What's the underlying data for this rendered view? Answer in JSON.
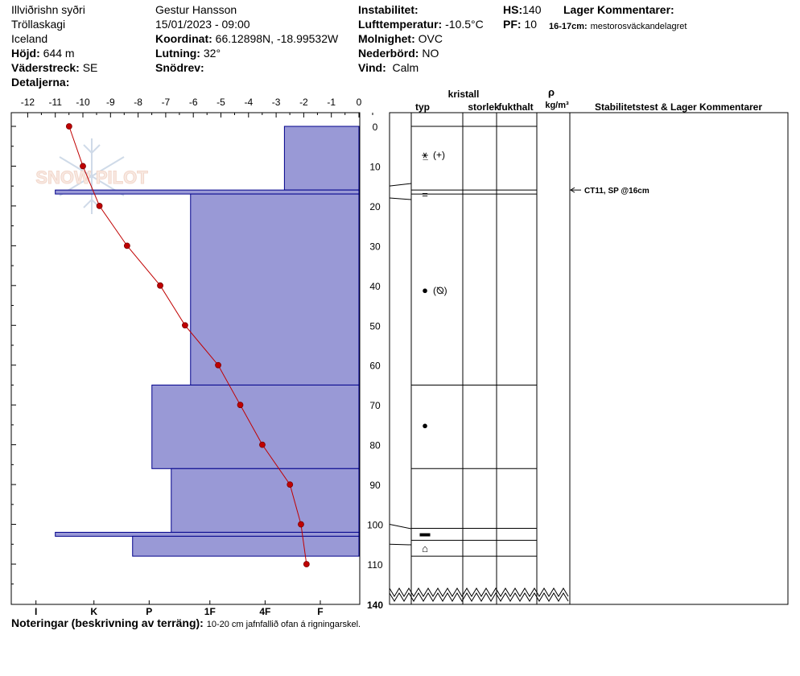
{
  "header": {
    "location": "Illviðrishn syðri",
    "region": "Tröllaskagi",
    "country": "Iceland",
    "elevation_label": "Höjd:",
    "elevation_value": "644 m",
    "aspect_label": "Väderstreck:",
    "aspect_value": "SE",
    "details_label": "Detaljerna:",
    "observer": "Gestur Hansson",
    "datetime": "15/01/2023 - 09:00",
    "coord_label": "Koordinat:",
    "coord_value": "66.12898N, -18.99532W",
    "slope_label": "Lutning:",
    "slope_value": "32°",
    "drift_label": "Snödrev:",
    "instability_label": "Instabilitet:",
    "airtemp_label": "Lufttemperatur:",
    "airtemp_value": "-10.5°C",
    "sky_label": "Molnighet:",
    "sky_value": "OVC",
    "precip_label": "Nederbörd:",
    "precip_value": "NO",
    "wind_label": "Vind:",
    "wind_value": "Calm",
    "hs_label": "HS:",
    "hs_value": "140",
    "pf_label": "PF:",
    "pf_value": "10",
    "layer_comments_label": "Lager Kommentarer:",
    "layer_comment_range": "16-17cm:",
    "layer_comment_text": "mestorosväckandelagret"
  },
  "notes": {
    "label": "Noteringar (beskrivning av terräng):",
    "text": "10-20 cm jafnfallið ofan á rigningarskel."
  },
  "watermark": "SNOW PILOT",
  "chart_data": {
    "type": "snow-profile",
    "temperature_axis": {
      "ticks": [
        -12,
        -11,
        -10,
        -9,
        -8,
        -7,
        -6,
        -5,
        -4,
        -3,
        -2,
        -1,
        0
      ],
      "range": [
        -12.5,
        0
      ]
    },
    "depth_axis": {
      "ticks": [
        0,
        10,
        20,
        30,
        40,
        50,
        60,
        70,
        80,
        90,
        100,
        110,
        140
      ],
      "range": [
        0,
        140
      ]
    },
    "hardness_axis": {
      "ticks": [
        {
          "label": "I",
          "temp": -11.7
        },
        {
          "label": "K",
          "temp": -9.6
        },
        {
          "label": "P",
          "temp": -7.6
        },
        {
          "label": "1F",
          "temp": -5.4
        },
        {
          "label": "4F",
          "temp": -3.4
        },
        {
          "label": "F",
          "temp": -1.4
        }
      ]
    },
    "temperature_profile": [
      {
        "depth": 0,
        "temp": -10.5
      },
      {
        "depth": 10,
        "temp": -10.0
      },
      {
        "depth": 20,
        "temp": -9.4
      },
      {
        "depth": 30,
        "temp": -8.4
      },
      {
        "depth": 40,
        "temp": -7.2
      },
      {
        "depth": 50,
        "temp": -6.3
      },
      {
        "depth": 60,
        "temp": -5.1
      },
      {
        "depth": 70,
        "temp": -4.3
      },
      {
        "depth": 80,
        "temp": -3.5
      },
      {
        "depth": 90,
        "temp": -2.5
      },
      {
        "depth": 100,
        "temp": -2.1
      },
      {
        "depth": 110,
        "temp": -1.9
      }
    ],
    "hardness_layers": [
      {
        "top": 0,
        "bottom": 16,
        "temp": -2.7
      },
      {
        "top": 16,
        "bottom": 17,
        "temp": -11.0
      },
      {
        "top": 17,
        "bottom": 65,
        "temp": -6.1
      },
      {
        "top": 65,
        "bottom": 86,
        "temp": -7.5
      },
      {
        "top": 86,
        "bottom": 102,
        "temp": -6.8
      },
      {
        "top": 102,
        "bottom": 103,
        "temp": -11.0
      },
      {
        "top": 103,
        "bottom": 108,
        "temp": -8.2
      }
    ],
    "layer_boundaries": [
      0,
      16,
      17,
      65,
      86,
      101,
      104,
      108
    ],
    "crystal_columns": {
      "kristall": "kristall",
      "typ": "typ",
      "storlek": "storlek",
      "fukthalt": "fukthalt",
      "rho": "ρ",
      "density_unit": "kg/m³",
      "stability": "Stabilitetstest & Lager Kommentarer"
    },
    "crystal_symbols": [
      {
        "depth": 7,
        "symbol": "⚹̲",
        "extra": "(+)"
      },
      {
        "depth": 17,
        "symbol": "=",
        "extra": ""
      },
      {
        "depth": 41,
        "symbol": "●",
        "extra": "(⦰)"
      },
      {
        "depth": 75,
        "symbol": "●",
        "extra": ""
      },
      {
        "depth": 102,
        "symbol": "▬",
        "extra": ""
      },
      {
        "depth": 106,
        "symbol": "⌂",
        "extra": ""
      }
    ],
    "stability_tests": [
      {
        "depth": 16,
        "text": "CT11, SP @16cm"
      }
    ],
    "colors": {
      "hardness_fill": "#9999d6",
      "hardness_stroke": "#00008b",
      "temperature": "#c00000"
    }
  }
}
